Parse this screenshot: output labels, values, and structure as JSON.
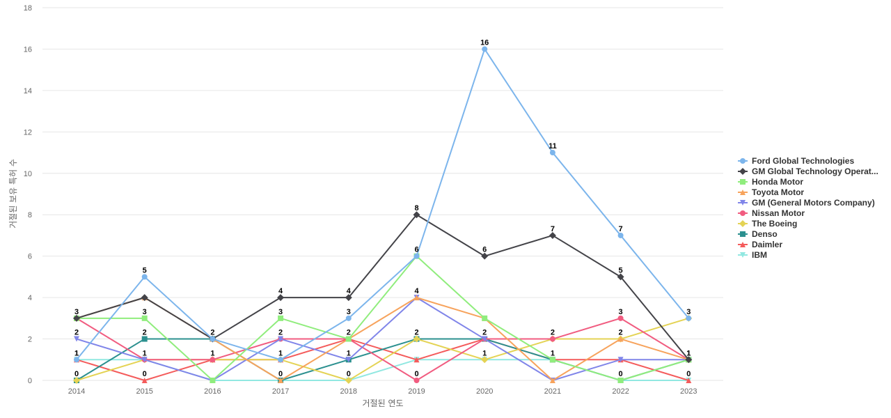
{
  "chart_data": {
    "type": "line",
    "xlabel": "거절된 연도",
    "ylabel": "거절된 보유 특허 수",
    "ylim": [
      0,
      18
    ],
    "yticks": [
      0,
      2,
      4,
      6,
      8,
      10,
      12,
      14,
      16,
      18
    ],
    "categories": [
      "2014",
      "2015",
      "2016",
      "2017",
      "2018",
      "2019",
      "2020",
      "2021",
      "2022",
      "2023"
    ],
    "grid": true,
    "legend_position": "right",
    "series": [
      {
        "name": "Ford Global Technologies",
        "color": "#7cb5ec",
        "marker": "circle",
        "values": [
          1,
          5,
          2,
          1,
          3,
          6,
          16,
          11,
          7,
          3
        ],
        "labels": [
          true,
          true,
          false,
          false,
          true,
          true,
          true,
          true,
          true,
          true
        ]
      },
      {
        "name": "GM Global Technology Operat...",
        "color": "#434348",
        "marker": "diamond",
        "values": [
          3,
          4,
          2,
          4,
          4,
          8,
          6,
          7,
          5,
          1
        ],
        "labels": [
          false,
          false,
          true,
          true,
          true,
          true,
          true,
          true,
          true,
          true
        ]
      },
      {
        "name": "Honda Motor",
        "color": "#90ed7d",
        "marker": "square",
        "values": [
          3,
          3,
          0,
          3,
          2,
          6,
          3,
          1,
          0,
          1
        ],
        "labels": [
          false,
          true,
          false,
          true,
          false,
          false,
          false,
          false,
          false,
          false
        ]
      },
      {
        "name": "Toyota Motor",
        "color": "#f7a35c",
        "marker": "triangle",
        "values": [
          3,
          4,
          2,
          0,
          2,
          4,
          3,
          0,
          2,
          1
        ],
        "labels": [
          false,
          false,
          false,
          false,
          false,
          false,
          false,
          false,
          false,
          false
        ]
      },
      {
        "name": "GM (General Motors Company)",
        "color": "#8085e9",
        "marker": "triangle-down",
        "values": [
          2,
          1,
          0,
          2,
          1,
          4,
          2,
          0,
          1,
          1
        ],
        "labels": [
          true,
          false,
          false,
          false,
          true,
          true,
          false,
          false,
          false,
          false
        ]
      },
      {
        "name": "Nissan Motor",
        "color": "#f15c80",
        "marker": "circle",
        "values": [
          3,
          1,
          1,
          2,
          2,
          0,
          2,
          2,
          3,
          1
        ],
        "labels": [
          true,
          false,
          false,
          true,
          true,
          true,
          false,
          true,
          true,
          false
        ]
      },
      {
        "name": "The Boeing",
        "color": "#e4d354",
        "marker": "diamond",
        "values": [
          0,
          1,
          1,
          1,
          0,
          2,
          1,
          2,
          2,
          3
        ],
        "labels": [
          false,
          true,
          true,
          true,
          true,
          true,
          true,
          false,
          true,
          false
        ]
      },
      {
        "name": "Denso",
        "color": "#2b908f",
        "marker": "square",
        "values": [
          0,
          2,
          2,
          0,
          1,
          2,
          2,
          1,
          0,
          1
        ],
        "labels": [
          true,
          true,
          false,
          true,
          false,
          false,
          true,
          true,
          true,
          true
        ]
      },
      {
        "name": "Daimler",
        "color": "#f45b5b",
        "marker": "triangle",
        "values": [
          1,
          0,
          1,
          1,
          2,
          1,
          2,
          1,
          1,
          0
        ],
        "labels": [
          true,
          true,
          false,
          false,
          false,
          false,
          false,
          false,
          false,
          true
        ]
      },
      {
        "name": "IBM",
        "color": "#91e8e1",
        "marker": "triangle-down",
        "values": [
          1,
          1,
          0,
          0,
          0,
          1,
          1,
          1,
          0,
          0
        ],
        "labels": [
          false,
          false,
          false,
          false,
          false,
          false,
          false,
          false,
          false,
          false
        ]
      }
    ]
  }
}
